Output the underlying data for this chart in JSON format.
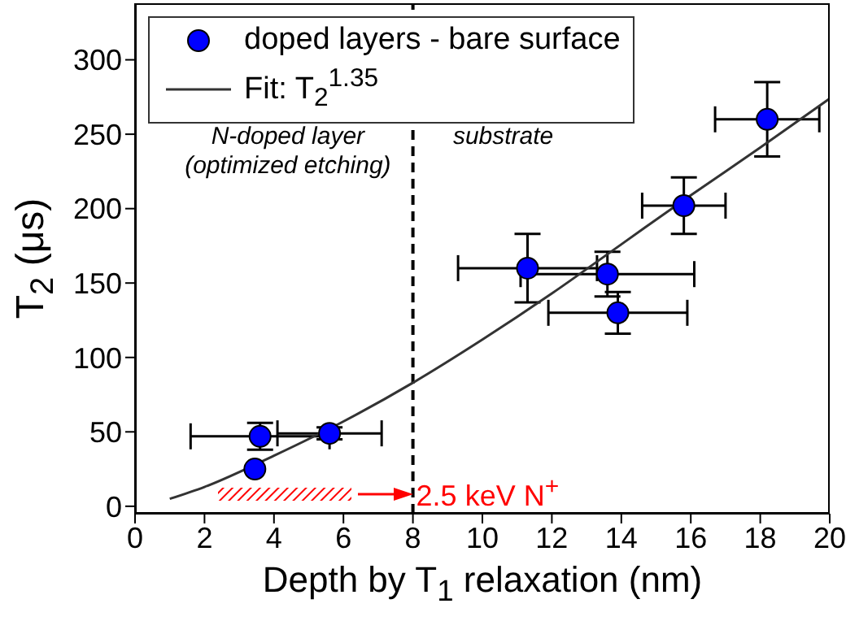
{
  "chart_data": {
    "type": "scatter",
    "xlabel": "Depth by T$_{1}$ relaxation (nm)",
    "ylabel": "T$_{2}$ (μs)",
    "xlim": [
      0,
      20
    ],
    "xticks": [
      0,
      2,
      4,
      6,
      8,
      10,
      12,
      14,
      16,
      18,
      20
    ],
    "ylim": [
      -5,
      338
    ],
    "yticks": [
      0,
      50,
      100,
      150,
      200,
      250,
      300
    ],
    "legend": "top left",
    "grid": false,
    "marker": "circle",
    "series": [
      {
        "name": "doped layers - bare surface",
        "color": "#0000ff",
        "x": [
          3.45,
          3.6,
          5.6,
          11.3,
          13.6,
          13.9,
          15.8,
          18.2
        ],
        "values": [
          25,
          47,
          49,
          160,
          156,
          130,
          202,
          260
        ],
        "errors": [
          null,
          9,
          4,
          23,
          15,
          14,
          19,
          25
        ],
        "xerrors": [
          null,
          2.0,
          1.5,
          2.0,
          2.5,
          2.0,
          1.2,
          1.5
        ]
      },
      {
        "name": "Fit: T$_{2}$$^{1.35}$",
        "type": "line",
        "color": "#333333",
        "line_style": "solid",
        "marker": "none",
        "x": [
          1,
          2,
          4,
          6,
          8,
          10,
          12,
          14,
          16,
          18,
          20
        ],
        "values": [
          5,
          13,
          34,
          57,
          83,
          112,
          143,
          176,
          209,
          241,
          274
        ]
      }
    ],
    "ref_lines": [
      {
        "axis": "x",
        "value": 8,
        "color": "#000000",
        "line_style": "dashed"
      }
    ],
    "annotations": [
      "N-doped layer",
      "(optimized etching)",
      "substrate",
      {
        "text": "2.5 keV N$^{+}$",
        "x": 8,
        "y": 7
      }
    ]
  }
}
